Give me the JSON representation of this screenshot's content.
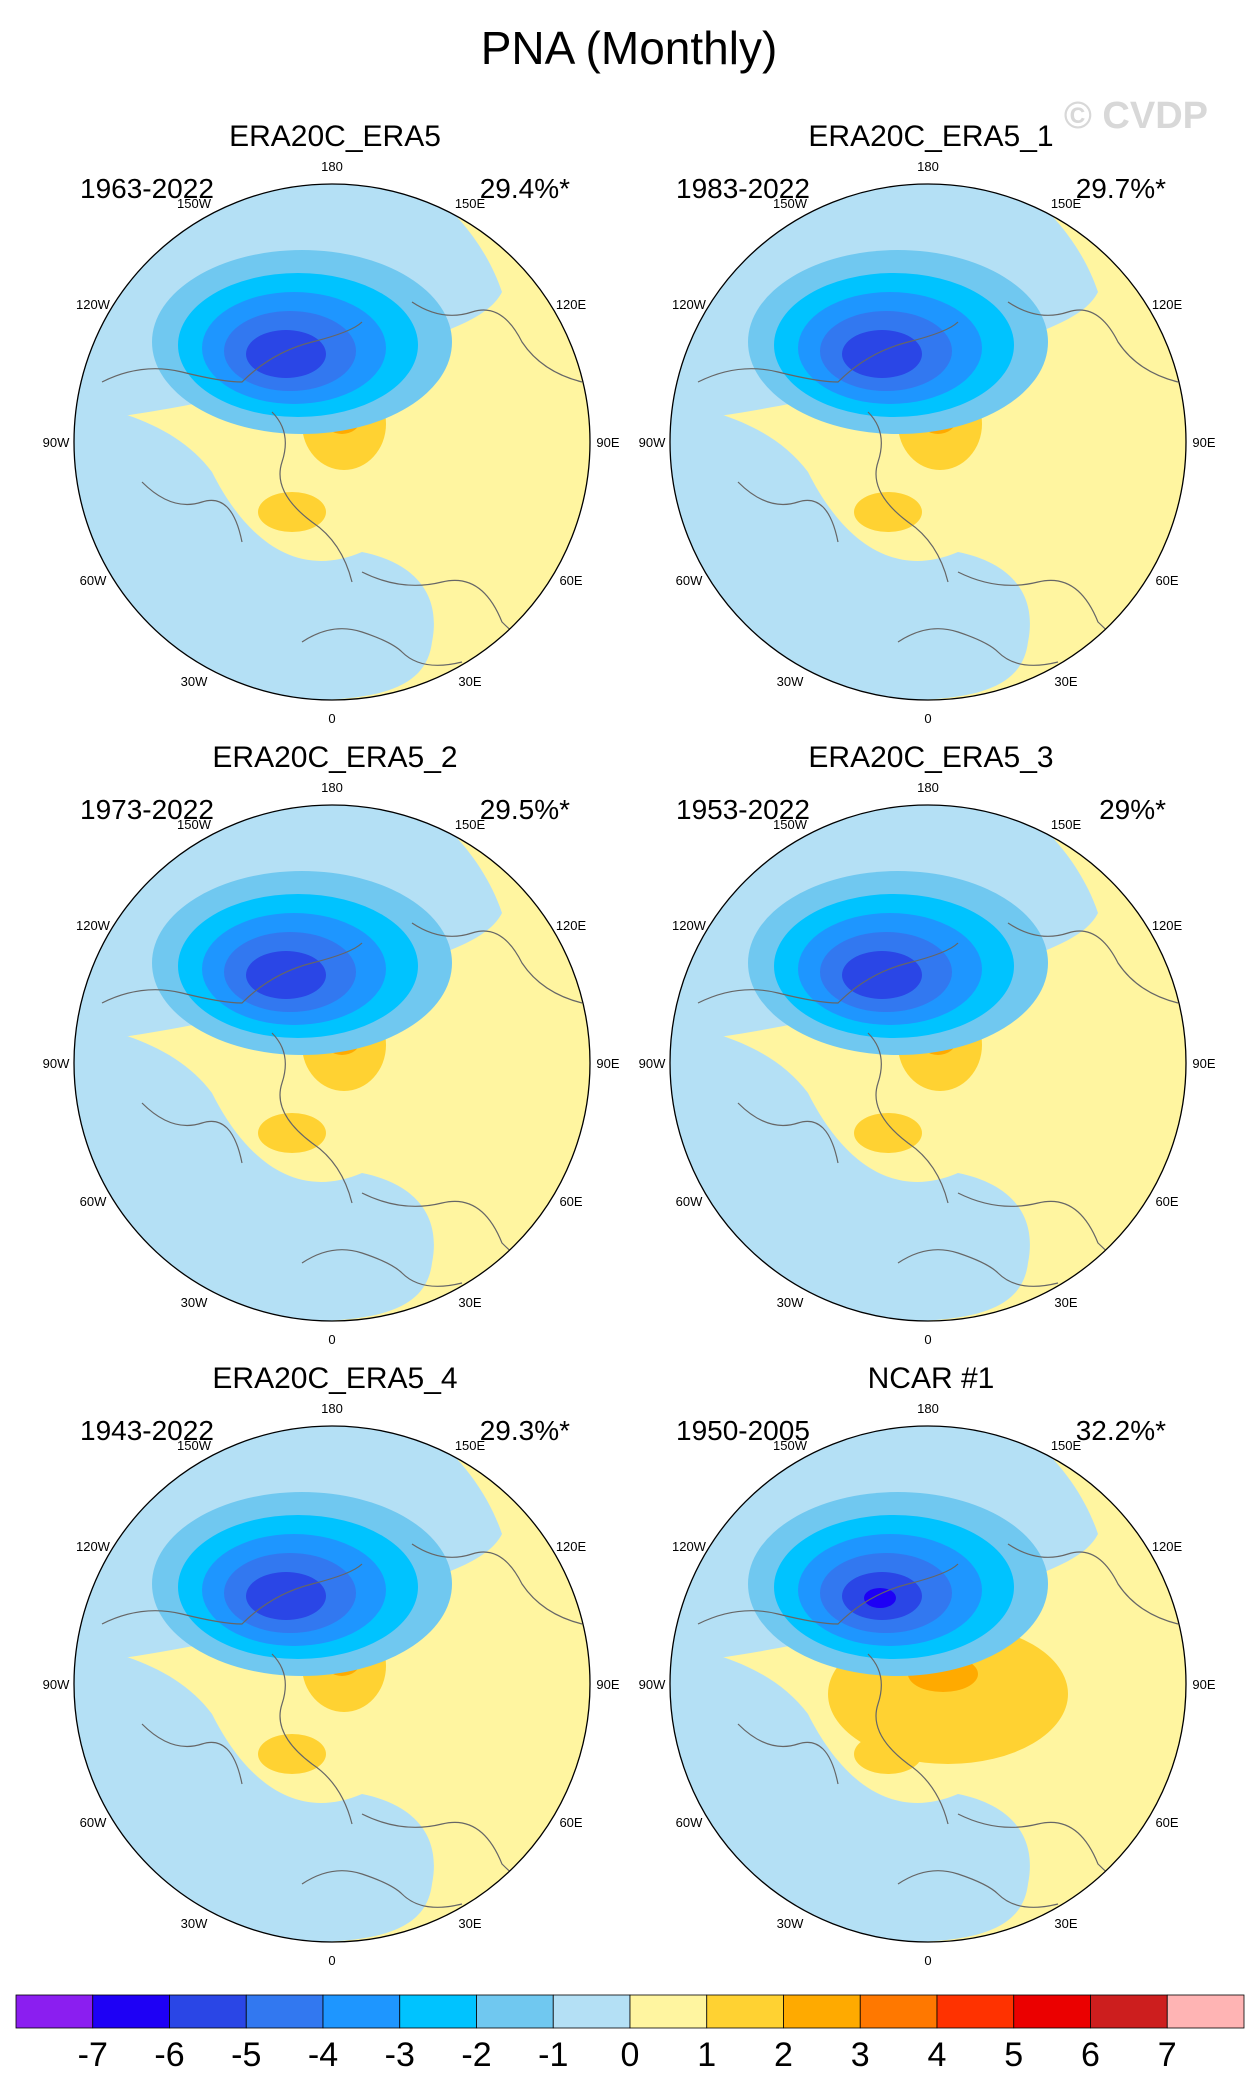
{
  "figure": {
    "title": "PNA (Monthly)",
    "watermark": "© CVDP"
  },
  "chart_data": [
    {
      "type": "heatmap",
      "projection": "polar-stereographic-NH",
      "title": "ERA20C_ERA5",
      "period": "1963-2022",
      "variance_explained": "29.4%*",
      "neg_center_min": -6,
      "pos_center_max": 2
    },
    {
      "type": "heatmap",
      "projection": "polar-stereographic-NH",
      "title": "ERA20C_ERA5_1",
      "period": "1983-2022",
      "variance_explained": "29.7%*",
      "neg_center_min": -6,
      "pos_center_max": 2
    },
    {
      "type": "heatmap",
      "projection": "polar-stereographic-NH",
      "title": "ERA20C_ERA5_2",
      "period": "1973-2022",
      "variance_explained": "29.5%*",
      "neg_center_min": -6,
      "pos_center_max": 2
    },
    {
      "type": "heatmap",
      "projection": "polar-stereographic-NH",
      "title": "ERA20C_ERA5_3",
      "period": "1953-2022",
      "variance_explained": "29%*",
      "neg_center_min": -6,
      "pos_center_max": 2
    },
    {
      "type": "heatmap",
      "projection": "polar-stereographic-NH",
      "title": "ERA20C_ERA5_4",
      "period": "1943-2022",
      "variance_explained": "29.3%*",
      "neg_center_min": -6,
      "pos_center_max": 2
    },
    {
      "type": "heatmap",
      "projection": "polar-stereographic-NH",
      "title": "NCAR #1",
      "period": "1950-2005",
      "variance_explained": "32.2%*",
      "neg_center_min": -7,
      "pos_center_max": 2
    }
  ],
  "longitude_labels": [
    "180",
    "150E",
    "120E",
    "90E",
    "60E",
    "30E",
    "0",
    "30W",
    "60W",
    "90W",
    "120W",
    "150W"
  ],
  "colorbar": {
    "labels": [
      "-7",
      "-6",
      "-5",
      "-4",
      "-3",
      "-2",
      "-1",
      "0",
      "1",
      "2",
      "3",
      "4",
      "5",
      "6",
      "7"
    ],
    "colors": [
      "#8b1ef0",
      "#1e00f5",
      "#2a46e6",
      "#3278f0",
      "#1e96ff",
      "#00c3ff",
      "#70c8f0",
      "#b4e0f5",
      "#fff5a0",
      "#ffd232",
      "#ffaa00",
      "#ff7800",
      "#ff3200",
      "#eb0000",
      "#cd1e1e",
      "#ffb4b4"
    ]
  },
  "colors": {
    "land_outline": "#666666",
    "frame": "#000000"
  }
}
